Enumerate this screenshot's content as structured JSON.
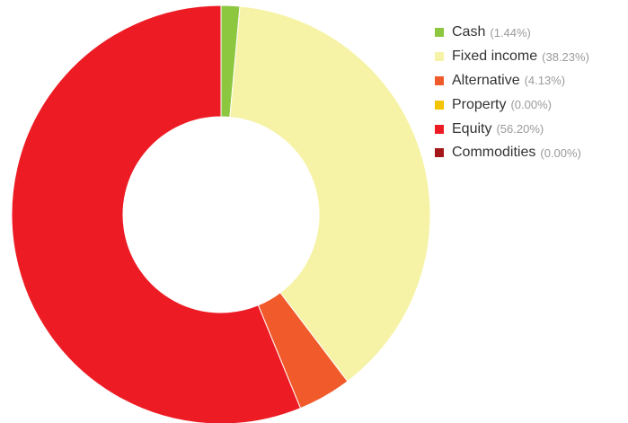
{
  "chart_data": {
    "type": "pie",
    "donut": true,
    "title": "",
    "legend_position": "right",
    "slices": [
      {
        "label": "Cash",
        "value": 1.44,
        "pct_label": "(1.44%)",
        "color": "#8dc63f"
      },
      {
        "label": "Fixed income",
        "value": 38.23,
        "pct_label": "(38.23%)",
        "color": "#f6f3a6"
      },
      {
        "label": "Alternative",
        "value": 4.13,
        "pct_label": "(4.13%)",
        "color": "#f15a2b"
      },
      {
        "label": "Property",
        "value": 0.0,
        "pct_label": "(0.00%)",
        "color": "#f5c400"
      },
      {
        "label": "Equity",
        "value": 56.2,
        "pct_label": "(56.20%)",
        "color": "#ed1c24"
      },
      {
        "label": "Commodities",
        "value": 0.0,
        "pct_label": "(0.00%)",
        "color": "#a4161a"
      }
    ]
  }
}
